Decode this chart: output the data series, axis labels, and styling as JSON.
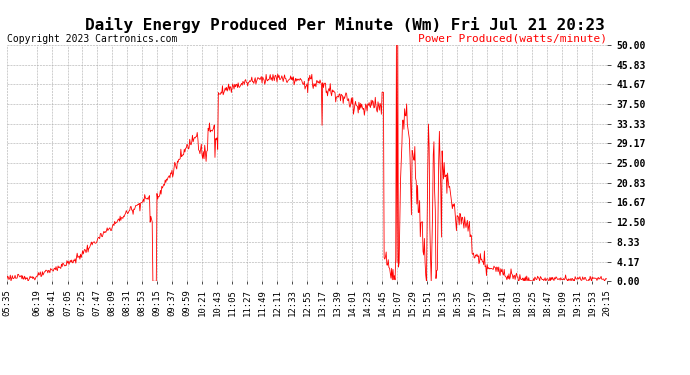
{
  "title": "Daily Energy Produced Per Minute (Wm) Fri Jul 21 20:23",
  "copyright": "Copyright 2023 Cartronics.com",
  "legend_label": "Power Produced(watts/minute)",
  "ylabel_right_values": [
    50.0,
    45.83,
    41.67,
    37.5,
    33.33,
    29.17,
    25.0,
    20.83,
    16.67,
    12.5,
    8.33,
    4.17,
    0.0
  ],
  "ymax": 50.0,
  "ymin": 0.0,
  "line_color": "red",
  "bg_color": "#ffffff",
  "grid_color": "#aaaaaa",
  "title_fontsize": 11.5,
  "copyright_fontsize": 7,
  "legend_fontsize": 8,
  "tick_fontsize": 6.5,
  "x_tick_labels": [
    "05:35",
    "06:19",
    "06:41",
    "07:05",
    "07:25",
    "07:47",
    "08:09",
    "08:31",
    "08:53",
    "09:15",
    "09:37",
    "09:59",
    "10:21",
    "10:43",
    "11:05",
    "11:27",
    "11:49",
    "12:11",
    "12:33",
    "12:55",
    "13:17",
    "13:39",
    "14:01",
    "14:23",
    "14:45",
    "15:07",
    "15:29",
    "15:51",
    "16:13",
    "16:35",
    "16:57",
    "17:19",
    "17:41",
    "18:03",
    "18:25",
    "18:47",
    "19:09",
    "19:31",
    "19:53",
    "20:15"
  ]
}
